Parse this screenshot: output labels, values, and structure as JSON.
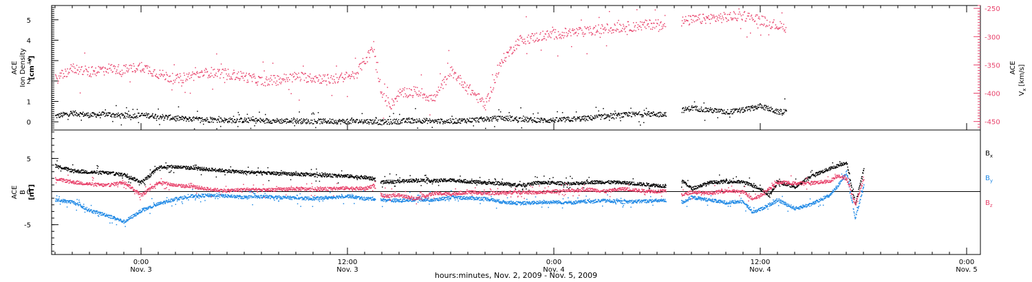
{
  "colors": {
    "density": "#000000",
    "vx": "#e8426b",
    "bx": "#000000",
    "by": "#1e88e5",
    "bz": "#e8426b",
    "axis": "#000000"
  },
  "footer": {
    "xlabel": "hours:minutes, Nov.  2, 2009 - Nov.  5, 2009"
  },
  "chart_data": [
    {
      "type": "scatter",
      "title": "",
      "x_unit": "hours from 2009-11-03 00:00",
      "xlim": [
        -5.2,
        48.8
      ],
      "x_ticks": [
        {
          "x": 0,
          "time": "0:00",
          "date": "Nov. 3"
        },
        {
          "x": 12,
          "time": "12:00",
          "date": "Nov. 3"
        },
        {
          "x": 24,
          "time": "0:00",
          "date": "Nov. 4"
        },
        {
          "x": 36,
          "time": "12:00",
          "date": "Nov. 4"
        },
        {
          "x": 48,
          "time": "0:00",
          "date": "Nov. 5"
        }
      ],
      "left_axis": {
        "label_lines": [
          "ACE",
          "Ion Density",
          "[cm⁻³]"
        ],
        "ylim": [
          -0.4,
          5.7
        ],
        "ticks": [
          0,
          1,
          2,
          3,
          4,
          5
        ]
      },
      "right_axis": {
        "label": "ACE Vₓ [km/s]",
        "label_main": "ACE",
        "label_sym": "V",
        "label_sub": "x",
        "label_unit": "[km/s]",
        "ylim": [
          -465,
          -245
        ],
        "ticks": [
          -250,
          -300,
          -350,
          -400,
          -450
        ]
      },
      "series": [
        {
          "name": "Ion Density",
          "color_key": "density",
          "gaps": [
            [
              30.5,
              31.4
            ],
            [
              37.5,
              41
            ]
          ],
          "x": [
            -5,
            -4,
            -3,
            -2,
            -1,
            0,
            1,
            2,
            3,
            4,
            5,
            6,
            7,
            8,
            9,
            10,
            11,
            12,
            13,
            13.5,
            14,
            15,
            16,
            17,
            18,
            19,
            20,
            21,
            22,
            23,
            24,
            25,
            26,
            27,
            28,
            29,
            30,
            30.4,
            31.5,
            32,
            33,
            34,
            35,
            36,
            37,
            38,
            39,
            40,
            41
          ],
          "y": [
            0.3,
            0.45,
            0.35,
            0.4,
            0.3,
            0.35,
            0.3,
            0.2,
            0.15,
            0.12,
            0.1,
            0.1,
            0.08,
            0.07,
            0.06,
            0.05,
            0.05,
            0.04,
            0.05,
            0.03,
            0.0,
            0.05,
            0.1,
            0.05,
            0.05,
            0.1,
            0.15,
            0.2,
            0.15,
            0.1,
            0.1,
            0.15,
            0.2,
            0.3,
            0.35,
            0.4,
            0.4,
            0.4,
            0.6,
            0.7,
            0.6,
            0.5,
            0.6,
            0.8,
            0.5,
            0.6,
            0.5,
            0.5,
            0.5
          ]
        },
        {
          "name": "Vx",
          "color_key": "vx",
          "gaps": [
            [
              30.5,
              31.4
            ],
            [
              37.5,
              41
            ]
          ],
          "x": [
            -5,
            -4,
            -3,
            -2,
            -1,
            0,
            1,
            2,
            3,
            4,
            5,
            6,
            7,
            8,
            9,
            10,
            11,
            12,
            12.5,
            13,
            13.5,
            14,
            14.5,
            15,
            16,
            17,
            18,
            19,
            20,
            21,
            22,
            23,
            24,
            25,
            26,
            27,
            28,
            29,
            30,
            30.4,
            31.5,
            32,
            33,
            34,
            35,
            36,
            37,
            38,
            39,
            40,
            41
          ],
          "y": [
            -375,
            -355,
            -362,
            -355,
            -358,
            -352,
            -365,
            -375,
            -368,
            -362,
            -365,
            -370,
            -378,
            -375,
            -370,
            -372,
            -375,
            -370,
            -365,
            -340,
            -320,
            -405,
            -420,
            -400,
            -395,
            -410,
            -360,
            -390,
            -420,
            -340,
            -305,
            -300,
            -295,
            -292,
            -290,
            -285,
            -282,
            -280,
            -276,
            -275,
            -272,
            -270,
            -267,
            -265,
            -262,
            -270,
            -280,
            -287,
            -292,
            -298,
            -320
          ]
        }
      ]
    },
    {
      "type": "line",
      "title": "",
      "x_unit": "hours from 2009-11-03 00:00",
      "xlim": [
        -5.2,
        48.8
      ],
      "ylabel_lines": [
        "ACE",
        "B",
        "[nT]"
      ],
      "ylim": [
        -9.5,
        9.3
      ],
      "y_ticks": [
        -5,
        0,
        5
      ],
      "legend_position": "right",
      "series": [
        {
          "name": "Bx",
          "name_sym": "B",
          "name_sub": "x",
          "color_key": "bx",
          "gaps": [
            [
              13.6,
              13.9
            ],
            [
              30.5,
              31.4
            ],
            [
              48.0,
              49
            ]
          ],
          "x": [
            -5,
            -4,
            -3,
            -2,
            -1,
            0,
            0.5,
            1,
            2,
            3,
            4,
            5,
            6,
            7,
            8,
            9,
            10,
            11,
            12,
            13,
            13.5,
            14,
            15,
            16,
            17,
            18,
            19,
            20,
            21,
            22,
            23,
            24,
            25,
            26,
            27,
            28,
            29,
            30,
            30.4,
            31.5,
            32,
            33,
            34,
            35,
            36,
            36.5,
            37,
            38,
            39,
            40,
            40.5,
            41,
            41.5,
            42
          ],
          "y": [
            4,
            3.2,
            3,
            2.9,
            2.6,
            1.5,
            2.5,
            3.8,
            3.8,
            3.6,
            3.4,
            3.2,
            3.0,
            2.9,
            2.8,
            2.7,
            2.6,
            2.5,
            2.4,
            2.2,
            2.0,
            1.5,
            1.6,
            1.8,
            1.7,
            1.8,
            1.6,
            1.4,
            1.3,
            1.0,
            1.4,
            1.4,
            1.2,
            1.5,
            1.5,
            1.4,
            1.2,
            1.0,
            0.9,
            1.6,
            0.5,
            1.4,
            1.6,
            1.5,
            0.5,
            -0.5,
            1.5,
            0.8,
            2.5,
            3.5,
            4.0,
            4.5,
            -2.0,
            3.5
          ]
        },
        {
          "name": "By",
          "name_sym": "B",
          "name_sub": "y",
          "color_key": "by",
          "gaps": [
            [
              13.6,
              13.9
            ],
            [
              30.5,
              31.4
            ],
            [
              48.0,
              49
            ]
          ],
          "x": [
            -5,
            -4,
            -3,
            -2,
            -1,
            0,
            1,
            2,
            3,
            4,
            5,
            6,
            7,
            8,
            9,
            10,
            11,
            12,
            13,
            13.5,
            14,
            15,
            16,
            17,
            18,
            19,
            20,
            21,
            22,
            23,
            24,
            25,
            26,
            27,
            28,
            29,
            30,
            30.4,
            31.5,
            32,
            33,
            34,
            35,
            35.5,
            36,
            37,
            38,
            39,
            40,
            40.5,
            41,
            41.5,
            42
          ],
          "y": [
            -1.2,
            -1.5,
            -2.8,
            -3.5,
            -4.5,
            -2.8,
            -1.8,
            -1.0,
            -0.6,
            -0.5,
            -0.6,
            -0.8,
            -0.7,
            -0.8,
            -0.9,
            -1.0,
            -0.8,
            -0.6,
            -1.0,
            -1.0,
            -1.2,
            -1.3,
            -1.1,
            -1.2,
            -0.8,
            -0.9,
            -1.0,
            -1.5,
            -1.7,
            -1.6,
            -1.5,
            -1.6,
            -1.4,
            -1.3,
            -1.5,
            -1.4,
            -1.3,
            -1.3,
            -1.5,
            -0.8,
            -1.2,
            -1.6,
            -1.4,
            -3.0,
            -2.6,
            -1.2,
            -2.5,
            -1.8,
            -0.5,
            1.0,
            3.0,
            -4.0,
            1.0
          ]
        },
        {
          "name": "Bz",
          "name_sym": "B",
          "name_sub": "z",
          "color_key": "bz",
          "gaps": [
            [
              13.6,
              13.9
            ],
            [
              30.5,
              31.4
            ],
            [
              48.0,
              49
            ]
          ],
          "x": [
            -5,
            -4,
            -3,
            -2,
            -1,
            0,
            1,
            2,
            3,
            4,
            5,
            6,
            7,
            8,
            9,
            10,
            11,
            12,
            13,
            13.5,
            14,
            15,
            16,
            17,
            18,
            19,
            20,
            21,
            22,
            23,
            24,
            25,
            26,
            27,
            28,
            29,
            30,
            30.4,
            31.5,
            32,
            33,
            34,
            35,
            35.5,
            36,
            37,
            38,
            39,
            40,
            40.5,
            41,
            41.5,
            42
          ],
          "y": [
            2.0,
            1.5,
            1.2,
            1.0,
            1.5,
            -0.5,
            1.5,
            1.0,
            0.8,
            0.4,
            0.2,
            0.4,
            0.3,
            0.4,
            0.5,
            0.4,
            0.5,
            0.6,
            0.5,
            1.0,
            -0.6,
            -0.5,
            -1.0,
            -0.2,
            -0.3,
            0.0,
            -0.2,
            -0.1,
            0.0,
            -0.1,
            0.1,
            0.2,
            0.4,
            0.1,
            0.5,
            0.2,
            0.1,
            0.2,
            -0.4,
            0.0,
            -0.2,
            0.2,
            0.0,
            -1.0,
            -0.5,
            1.5,
            1.3,
            1.4,
            1.6,
            2.5,
            2.0,
            -2.0,
            2.0
          ]
        }
      ]
    }
  ]
}
